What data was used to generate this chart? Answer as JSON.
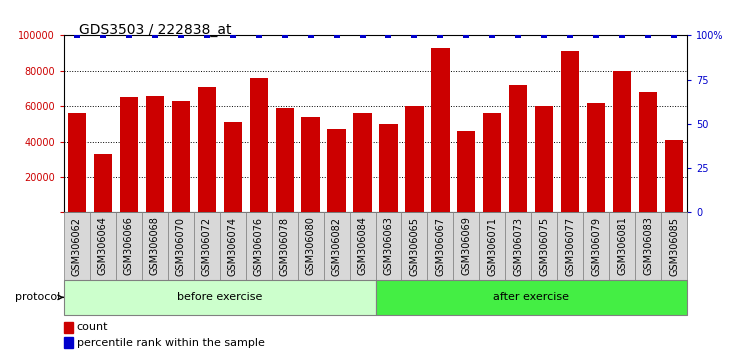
{
  "title": "GDS3503 / 222838_at",
  "categories": [
    "GSM306062",
    "GSM306064",
    "GSM306066",
    "GSM306068",
    "GSM306070",
    "GSM306072",
    "GSM306074",
    "GSM306076",
    "GSM306078",
    "GSM306080",
    "GSM306082",
    "GSM306084",
    "GSM306063",
    "GSM306065",
    "GSM306067",
    "GSM306069",
    "GSM306071",
    "GSM306073",
    "GSM306075",
    "GSM306077",
    "GSM306079",
    "GSM306081",
    "GSM306083",
    "GSM306085"
  ],
  "values": [
    56000,
    33000,
    65000,
    66000,
    63000,
    71000,
    51000,
    76000,
    59000,
    54000,
    47000,
    56000,
    50000,
    60000,
    93000,
    46000,
    56000,
    72000,
    60000,
    91000,
    62000,
    80000,
    68000,
    41000
  ],
  "bar_color": "#CC0000",
  "percentile_color": "#0000CC",
  "before_count": 12,
  "after_count": 12,
  "group_labels": [
    "before exercise",
    "after exercise"
  ],
  "group_colors": [
    "#CCFFCC",
    "#44EE44"
  ],
  "protocol_label": "protocol",
  "legend_count_label": "count",
  "legend_percentile_label": "percentile rank within the sample",
  "ylim_left": [
    0,
    100000
  ],
  "ylim_right": [
    0,
    100
  ],
  "yticks_left": [
    0,
    20000,
    40000,
    60000,
    80000,
    100000
  ],
  "ytick_labels_left": [
    "",
    "20000",
    "40000",
    "60000",
    "80000",
    "100000"
  ],
  "yticks_right": [
    0,
    25,
    50,
    75,
    100
  ],
  "ytick_labels_right": [
    "0",
    "25",
    "50",
    "75",
    "100%"
  ],
  "background_color": "#FFFFFF",
  "title_fontsize": 10,
  "tick_fontsize": 7,
  "label_fontsize": 8
}
